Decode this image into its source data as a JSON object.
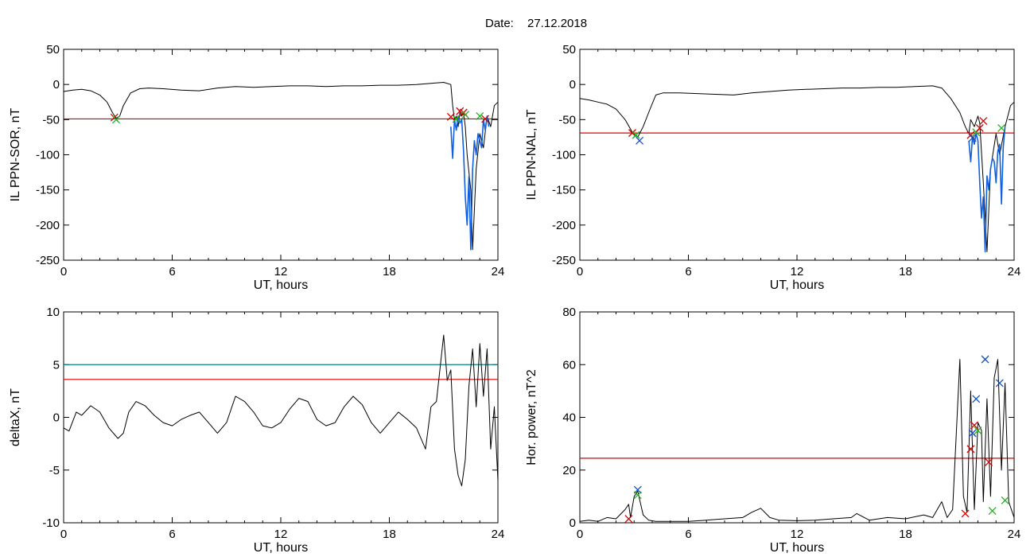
{
  "header": {
    "date_label": "Date:",
    "date_value": "27.12.2018"
  },
  "colors": {
    "trace": "#000000",
    "threshold": "#e00000",
    "threshold2": "#008080",
    "dip": "#1060e0",
    "cross_red": "#d00000",
    "cross_green": "#20b020",
    "cross_blue": "#1050c0"
  },
  "chart_data": [
    {
      "type": "line",
      "ylabel": "IL PPN-SOR, nT",
      "xlabel": "UT, hours",
      "xlim": [
        0,
        24
      ],
      "ylim": [
        -250,
        50
      ],
      "xticks": [
        "0",
        "6",
        "12",
        "18",
        "24"
      ],
      "yticks": [
        "50",
        "0",
        "-50",
        "-100",
        "-150",
        "-200",
        "-250"
      ],
      "thresholds": [
        {
          "value": -49,
          "color": "red"
        }
      ],
      "series": [
        {
          "x": [
            0,
            0.5,
            1.0,
            1.5,
            2.0,
            2.4,
            2.7,
            2.9,
            3.1,
            3.3,
            3.7,
            4.2,
            4.7,
            5.5,
            6.5,
            7.5,
            8.5,
            9.5,
            10.5,
            11.5,
            12.5,
            13.5,
            14.5,
            15.5,
            16.5,
            17.5,
            18.5,
            19.5,
            20.5,
            21.0,
            21.4,
            21.5,
            21.6,
            21.7,
            21.8,
            21.9,
            22.0,
            22.1,
            22.2,
            22.3,
            22.5,
            22.6,
            22.8,
            23.0,
            23.2,
            23.4,
            23.6,
            23.8,
            24.0
          ],
          "y": [
            -10,
            -8,
            -7,
            -9,
            -15,
            -25,
            -40,
            -48,
            -45,
            -30,
            -12,
            -6,
            -5,
            -6,
            -8,
            -9,
            -5,
            -3,
            -4,
            -3,
            -2,
            -2,
            -3,
            -2,
            -2,
            -1,
            -1,
            0,
            2,
            3,
            0,
            -30,
            -50,
            -45,
            -60,
            -40,
            -45,
            -40,
            -60,
            -100,
            -150,
            -235,
            -120,
            -70,
            -90,
            -45,
            -60,
            -30,
            -25
          ]
        },
        {
          "name": "",
          "x": [
            21.4,
            21.5,
            21.6,
            21.7,
            21.8,
            21.9,
            22.0,
            22.1,
            22.2,
            22.3,
            22.4,
            22.5,
            22.6,
            22.7,
            22.8,
            22.9,
            23.0,
            23.1,
            23.2,
            23.3,
            23.4,
            23.5
          ],
          "y": [
            -60,
            -105,
            -50,
            -65,
            -45,
            -55,
            -50,
            -95,
            -160,
            -200,
            -130,
            -235,
            -120,
            -80,
            -100,
            -70,
            -80,
            -90,
            -50,
            -65,
            -45,
            -60
          ]
        }
      ],
      "markers": [
        {
          "x": 2.8,
          "y": -47,
          "color": "red"
        },
        {
          "x": 2.9,
          "y": -50,
          "color": "green"
        },
        {
          "x": 21.4,
          "y": -46,
          "color": "red"
        },
        {
          "x": 21.7,
          "y": -49,
          "color": "green"
        },
        {
          "x": 21.9,
          "y": -38,
          "color": "red"
        },
        {
          "x": 22.1,
          "y": -40,
          "color": "red"
        },
        {
          "x": 22.2,
          "y": -43,
          "color": "green"
        },
        {
          "x": 23.0,
          "y": -45,
          "color": "green"
        },
        {
          "x": 23.3,
          "y": -49,
          "color": "red"
        }
      ]
    },
    {
      "type": "line",
      "ylabel": "IL PPN-NAL, nT",
      "xlabel": "UT, hours",
      "xlim": [
        0,
        24
      ],
      "ylim": [
        -250,
        50
      ],
      "xticks": [
        "0",
        "6",
        "12",
        "18",
        "24"
      ],
      "yticks": [
        "50",
        "0",
        "-50",
        "-100",
        "-150",
        "-200",
        "-250"
      ],
      "thresholds": [
        {
          "value": -69,
          "color": "red"
        }
      ],
      "series": [
        {
          "x": [
            0,
            0.5,
            1.0,
            1.5,
            2.0,
            2.5,
            2.9,
            3.2,
            3.5,
            3.8,
            4.2,
            4.6,
            5.5,
            6.5,
            7.5,
            8.5,
            9.5,
            10.5,
            11.5,
            12.5,
            13.5,
            14.5,
            15.5,
            16.5,
            17.5,
            18.5,
            19.5,
            20.0,
            20.5,
            21.0,
            21.3,
            21.5,
            21.6,
            21.8,
            22.0,
            22.1,
            22.3,
            22.5,
            22.7,
            23.0,
            23.2,
            23.5,
            23.8,
            24.0
          ],
          "y": [
            -20,
            -22,
            -25,
            -28,
            -35,
            -50,
            -68,
            -75,
            -60,
            -40,
            -15,
            -12,
            -12,
            -13,
            -14,
            -15,
            -12,
            -10,
            -8,
            -7,
            -6,
            -5,
            -5,
            -4,
            -4,
            -3,
            -2,
            -5,
            -20,
            -40,
            -60,
            -70,
            -50,
            -60,
            -45,
            -55,
            -140,
            -238,
            -120,
            -70,
            -100,
            -60,
            -30,
            -25
          ]
        },
        {
          "name": "",
          "x": [
            21.5,
            21.6,
            21.7,
            21.8,
            21.9,
            22.0,
            22.1,
            22.2,
            22.3,
            22.4,
            22.5,
            22.6,
            22.7,
            22.8,
            22.9,
            23.0,
            23.1,
            23.2,
            23.3,
            23.4,
            23.5
          ],
          "y": [
            -80,
            -110,
            -75,
            -85,
            -70,
            -80,
            -140,
            -190,
            -160,
            -238,
            -130,
            -150,
            -120,
            -105,
            -110,
            -140,
            -95,
            -85,
            -170,
            -90,
            -60
          ]
        }
      ],
      "markers": [
        {
          "x": 2.9,
          "y": -69,
          "color": "red"
        },
        {
          "x": 3.1,
          "y": -72,
          "color": "green"
        },
        {
          "x": 3.3,
          "y": -80,
          "color": "blue"
        },
        {
          "x": 21.6,
          "y": -72,
          "color": "red"
        },
        {
          "x": 21.7,
          "y": -76,
          "color": "blue"
        },
        {
          "x": 21.9,
          "y": -68,
          "color": "green"
        },
        {
          "x": 22.1,
          "y": -62,
          "color": "red"
        },
        {
          "x": 22.3,
          "y": -52,
          "color": "red"
        },
        {
          "x": 23.3,
          "y": -62,
          "color": "green"
        }
      ]
    },
    {
      "type": "line",
      "ylabel": "deltaX, nT",
      "xlabel": "UT, hours",
      "xlim": [
        0,
        24
      ],
      "ylim": [
        -10,
        10
      ],
      "xticks": [
        "0",
        "6",
        "12",
        "18",
        "24"
      ],
      "yticks": [
        "10",
        "5",
        "0",
        "-5",
        "-10"
      ],
      "thresholds": [
        {
          "value": 5,
          "color": "teal"
        },
        {
          "value": 3.6,
          "color": "red"
        }
      ],
      "series": [
        {
          "x": [
            0,
            0.3,
            0.7,
            1.0,
            1.5,
            2.0,
            2.5,
            3.0,
            3.3,
            3.6,
            4.0,
            4.5,
            5.0,
            5.5,
            6.0,
            6.5,
            7.0,
            7.5,
            8.0,
            8.5,
            9.0,
            9.5,
            10.0,
            10.5,
            11.0,
            11.5,
            12.0,
            12.5,
            13.0,
            13.5,
            14.0,
            14.5,
            15.0,
            15.5,
            16.0,
            16.5,
            17.0,
            17.5,
            18.0,
            18.5,
            19.0,
            19.5,
            20.0,
            20.3,
            20.6,
            21.0,
            21.2,
            21.4,
            21.6,
            21.8,
            22.0,
            22.2,
            22.4,
            22.6,
            22.8,
            23.0,
            23.2,
            23.4,
            23.6,
            23.8,
            24.0
          ],
          "y": [
            -1,
            -1.3,
            0.5,
            0.2,
            1.1,
            0.5,
            -1.0,
            -2.0,
            -1.5,
            0.5,
            1.5,
            1.1,
            0.2,
            -0.5,
            -0.8,
            -0.2,
            0.2,
            0.5,
            -0.5,
            -1.5,
            -0.5,
            2.0,
            1.5,
            0.5,
            -0.8,
            -1.0,
            -0.5,
            0.8,
            1.8,
            1.5,
            -0.2,
            -0.8,
            -0.5,
            1.0,
            2.0,
            1.2,
            -0.5,
            -1.5,
            -0.5,
            0.5,
            -0.2,
            -1.0,
            -3.0,
            1.0,
            1.5,
            7.8,
            3.5,
            4.5,
            -3.0,
            -5.5,
            -6.5,
            -4.0,
            3.0,
            6.5,
            1.0,
            7.0,
            2.0,
            6.5,
            -3.0,
            1.0,
            -6.0
          ]
        }
      ],
      "markers": []
    },
    {
      "type": "line",
      "ylabel": "Hor. power, nT^2",
      "xlabel": "UT, hours",
      "xlim": [
        0,
        24
      ],
      "ylim": [
        0,
        80
      ],
      "xticks": [
        "0",
        "6",
        "12",
        "18",
        "24"
      ],
      "yticks": [
        "80",
        "60",
        "40",
        "20",
        "0"
      ],
      "thresholds": [
        {
          "value": 24.5,
          "color": "red"
        }
      ],
      "series": [
        {
          "x": [
            0,
            0.5,
            1.0,
            1.5,
            2.0,
            2.5,
            2.7,
            2.8,
            3.0,
            3.2,
            3.5,
            3.8,
            4.2,
            5.0,
            6.0,
            7.0,
            8.0,
            9.0,
            9.5,
            10.0,
            10.5,
            11.0,
            12.0,
            13.0,
            14.0,
            15.0,
            15.3,
            16.0,
            17.0,
            18.0,
            19.0,
            19.5,
            20.0,
            20.3,
            20.6,
            21.0,
            21.2,
            21.4,
            21.6,
            21.8,
            22.0,
            22.2,
            22.3,
            22.5,
            22.7,
            22.9,
            23.1,
            23.3,
            23.5,
            23.7,
            24.0
          ],
          "y": [
            0.5,
            1.0,
            0.5,
            2.0,
            1.5,
            5.0,
            7.0,
            2.0,
            10.0,
            12.0,
            3.0,
            1.0,
            0.5,
            0.5,
            0.5,
            1.0,
            1.5,
            2.0,
            4.0,
            5.5,
            2.0,
            1.0,
            0.8,
            1.0,
            1.5,
            2.0,
            3.5,
            1.0,
            2.0,
            1.5,
            3.0,
            2.0,
            8.0,
            2.0,
            5.0,
            62.0,
            10.0,
            4.0,
            50.0,
            5.0,
            38.0,
            35.0,
            8.0,
            47.0,
            10.0,
            55.0,
            62.0,
            20.0,
            53.0,
            8.0,
            2.0
          ]
        }
      ],
      "markers": [
        {
          "x": 2.7,
          "y": 1.5,
          "color": "red"
        },
        {
          "x": 3.2,
          "y": 12.5,
          "color": "blue"
        },
        {
          "x": 3.2,
          "y": 10.5,
          "color": "green"
        },
        {
          "x": 21.3,
          "y": 3.5,
          "color": "red"
        },
        {
          "x": 21.6,
          "y": 28,
          "color": "red"
        },
        {
          "x": 21.7,
          "y": 34,
          "color": "blue"
        },
        {
          "x": 21.8,
          "y": 37,
          "color": "red"
        },
        {
          "x": 21.9,
          "y": 47,
          "color": "blue"
        },
        {
          "x": 22.0,
          "y": 35,
          "color": "green"
        },
        {
          "x": 22.4,
          "y": 62,
          "color": "blue"
        },
        {
          "x": 22.6,
          "y": 23,
          "color": "red"
        },
        {
          "x": 22.8,
          "y": 4.5,
          "color": "green"
        },
        {
          "x": 23.2,
          "y": 53,
          "color": "blue"
        },
        {
          "x": 23.5,
          "y": 8.5,
          "color": "green"
        }
      ]
    }
  ]
}
